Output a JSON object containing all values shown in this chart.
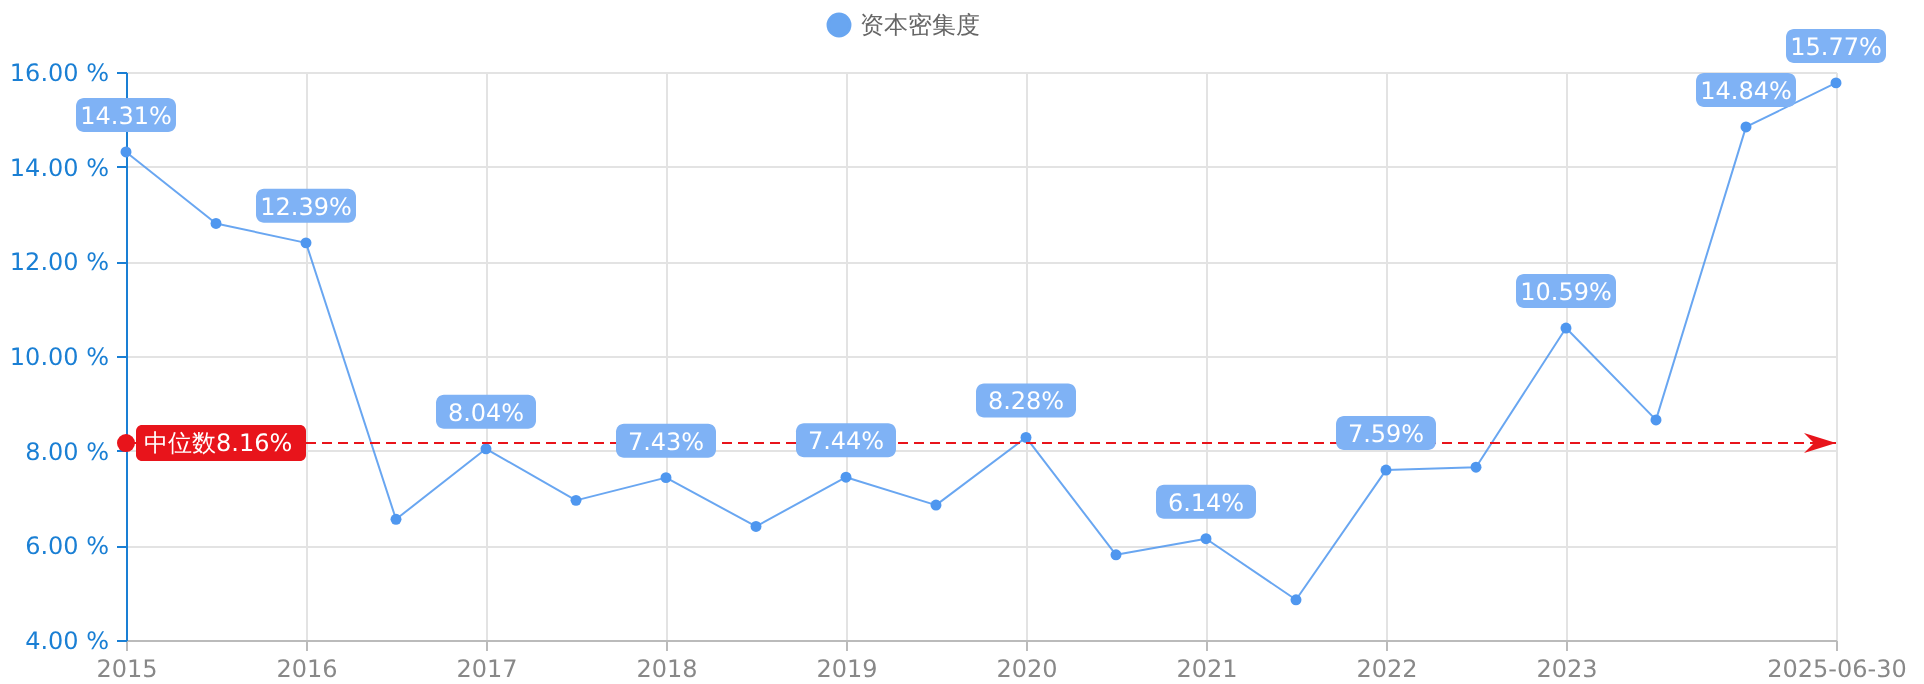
{
  "chart_data": {
    "type": "line",
    "categories": [
      "2015",
      null,
      "2016",
      null,
      "2017",
      null,
      "2018",
      null,
      "2019",
      null,
      "2020",
      null,
      "2021",
      null,
      "2022",
      null,
      "2023",
      null,
      null,
      "2025-06-30"
    ],
    "series": [
      {
        "name": "资本密集度",
        "color": "#4f97ef",
        "values": [
          14.31,
          12.8,
          12.39,
          6.55,
          8.04,
          6.95,
          7.43,
          6.4,
          7.44,
          6.85,
          8.28,
          5.8,
          6.14,
          4.85,
          7.59,
          7.65,
          10.59,
          8.65,
          14.84,
          15.77
        ],
        "value_labels": [
          "14.31%",
          null,
          "12.39%",
          null,
          "8.04%",
          null,
          "7.43%",
          null,
          "7.44%",
          null,
          "8.28%",
          null,
          "6.14%",
          null,
          "7.59%",
          null,
          "10.59%",
          null,
          "14.84%",
          "15.77%"
        ]
      }
    ],
    "ylim": [
      4,
      16
    ],
    "yticks": [
      {
        "value": 4,
        "label": "4.00 %"
      },
      {
        "value": 6,
        "label": "6.00 %"
      },
      {
        "value": 8,
        "label": "8.00 %"
      },
      {
        "value": 10,
        "label": "10.00 %"
      },
      {
        "value": 12,
        "label": "12.00 %"
      },
      {
        "value": 14,
        "label": "14.00 %"
      },
      {
        "value": 16,
        "label": "16.00 %"
      }
    ],
    "ref_lines": [
      {
        "axis": "y",
        "value": 8.16,
        "label": "中位数8.16%",
        "color": "#e8141b",
        "line_style": "dashed"
      }
    ],
    "grid": true,
    "legend": "top",
    "marker": "circle",
    "line_style": "solid"
  }
}
